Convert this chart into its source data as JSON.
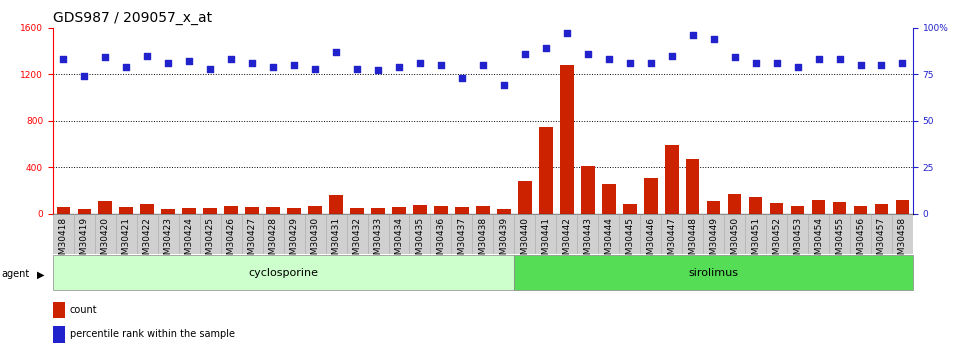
{
  "title": "GDS987 / 209057_x_at",
  "samples": [
    "GSM30418",
    "GSM30419",
    "GSM30420",
    "GSM30421",
    "GSM30422",
    "GSM30423",
    "GSM30424",
    "GSM30425",
    "GSM30426",
    "GSM30427",
    "GSM30428",
    "GSM30429",
    "GSM30430",
    "GSM30431",
    "GSM30432",
    "GSM30433",
    "GSM30434",
    "GSM30435",
    "GSM30436",
    "GSM30437",
    "GSM30438",
    "GSM30439",
    "GSM30440",
    "GSM30441",
    "GSM30442",
    "GSM30443",
    "GSM30444",
    "GSM30445",
    "GSM30446",
    "GSM30447",
    "GSM30448",
    "GSM30449",
    "GSM30450",
    "GSM30451",
    "GSM30452",
    "GSM30453",
    "GSM30454",
    "GSM30455",
    "GSM30456",
    "GSM30457",
    "GSM30458"
  ],
  "counts": [
    55,
    40,
    110,
    55,
    85,
    45,
    50,
    50,
    65,
    58,
    62,
    52,
    65,
    165,
    48,
    50,
    60,
    80,
    65,
    58,
    65,
    40,
    280,
    750,
    1280,
    410,
    255,
    85,
    305,
    590,
    475,
    110,
    170,
    145,
    95,
    72,
    120,
    100,
    72,
    82,
    120
  ],
  "percentiles": [
    83,
    74,
    84,
    79,
    85,
    81,
    82,
    78,
    83,
    81,
    79,
    80,
    78,
    87,
    78,
    77,
    79,
    81,
    80,
    73,
    80,
    69,
    86,
    89,
    97,
    86,
    83,
    81,
    81,
    85,
    96,
    94,
    84,
    81,
    81,
    79,
    83,
    83,
    80,
    80,
    81
  ],
  "group_labels": [
    "cyclosporine",
    "sirolimus"
  ],
  "cyclosporine_count": 22,
  "sirolimus_count": 19,
  "group_colors": [
    "#ccffcc",
    "#55dd55"
  ],
  "bar_color": "#cc2200",
  "dot_color": "#2222cc",
  "ylim_left": [
    0,
    1600
  ],
  "yticks_left": [
    0,
    400,
    800,
    1200,
    1600
  ],
  "ylim_right": [
    0,
    100
  ],
  "yticks_right": [
    0,
    25,
    50,
    75,
    100
  ],
  "ytick_labels_right": [
    "0",
    "25",
    "50",
    "75",
    "100%"
  ],
  "hline_values": [
    400,
    800,
    1200
  ],
  "background_color": "#ffffff",
  "title_fontsize": 10,
  "tick_fontsize": 6.5,
  "agent_label": "agent",
  "legend_items": [
    "count",
    "percentile rank within the sample"
  ]
}
